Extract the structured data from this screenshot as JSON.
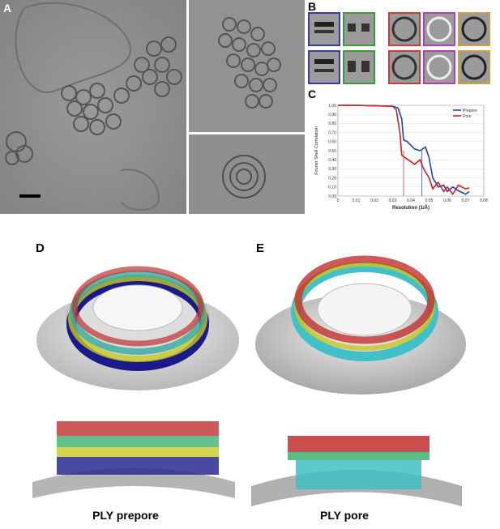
{
  "panels": {
    "a": {
      "label": "A"
    },
    "b": {
      "label": "B"
    },
    "c": {
      "label": "C"
    },
    "d": {
      "label": "D"
    },
    "e": {
      "label": "E"
    }
  },
  "captions": {
    "prepore": "PLY prepore",
    "pore": "PLY pore"
  },
  "class_average_frame_colors": [
    "#3a3aa0",
    "#3c9a3c",
    "#c83c3c",
    "#b040b0",
    "#d0a040"
  ],
  "chart_data": {
    "type": "line",
    "xlabel": "Resolution  (1/Å)",
    "ylabel": "Fourier Shell Correlation",
    "xlim": [
      0,
      0.08
    ],
    "ylim": [
      0,
      1.0
    ],
    "xticks": [
      "0",
      "0.01",
      "0.02",
      "0.03",
      "0.04",
      "0.05",
      "0.06",
      "0.07",
      "0.08"
    ],
    "yticks": [
      "0.00",
      "0.10",
      "0.20",
      "0.30",
      "0.40",
      "0.50",
      "0.60",
      "0.70",
      "0.80",
      "0.90",
      "1.00"
    ],
    "grid": true,
    "legend_position": "top-right",
    "series": [
      {
        "name": "Prepore",
        "color": "#1f3fbf",
        "x": [
          0,
          0.01,
          0.02,
          0.03,
          0.033,
          0.035,
          0.036,
          0.038,
          0.04,
          0.042,
          0.045,
          0.048,
          0.05,
          0.052,
          0.055,
          0.058,
          0.06,
          0.063,
          0.066,
          0.07,
          0.072
        ],
        "y": [
          1.0,
          1.0,
          0.995,
          0.99,
          0.97,
          0.85,
          0.62,
          0.6,
          0.56,
          0.52,
          0.5,
          0.54,
          0.42,
          0.2,
          0.1,
          0.12,
          0.05,
          0.1,
          0.06,
          0.02,
          0.05
        ]
      },
      {
        "name": "Pore",
        "color": "#d02020",
        "x": [
          0,
          0.01,
          0.02,
          0.03,
          0.032,
          0.034,
          0.035,
          0.037,
          0.04,
          0.042,
          0.045,
          0.047,
          0.05,
          0.052,
          0.055,
          0.058,
          0.06,
          0.063,
          0.066,
          0.07,
          0.072
        ],
        "y": [
          1.0,
          1.0,
          0.995,
          0.99,
          0.95,
          0.7,
          0.45,
          0.42,
          0.38,
          0.35,
          0.4,
          0.3,
          0.2,
          0.08,
          0.15,
          0.05,
          0.1,
          0.02,
          0.12,
          0.08,
          0.09
        ]
      }
    ],
    "reference_lines": [
      {
        "x": 0.036,
        "color": "#d02020"
      },
      {
        "x": 0.046,
        "color": "#1f3fbf"
      }
    ]
  }
}
